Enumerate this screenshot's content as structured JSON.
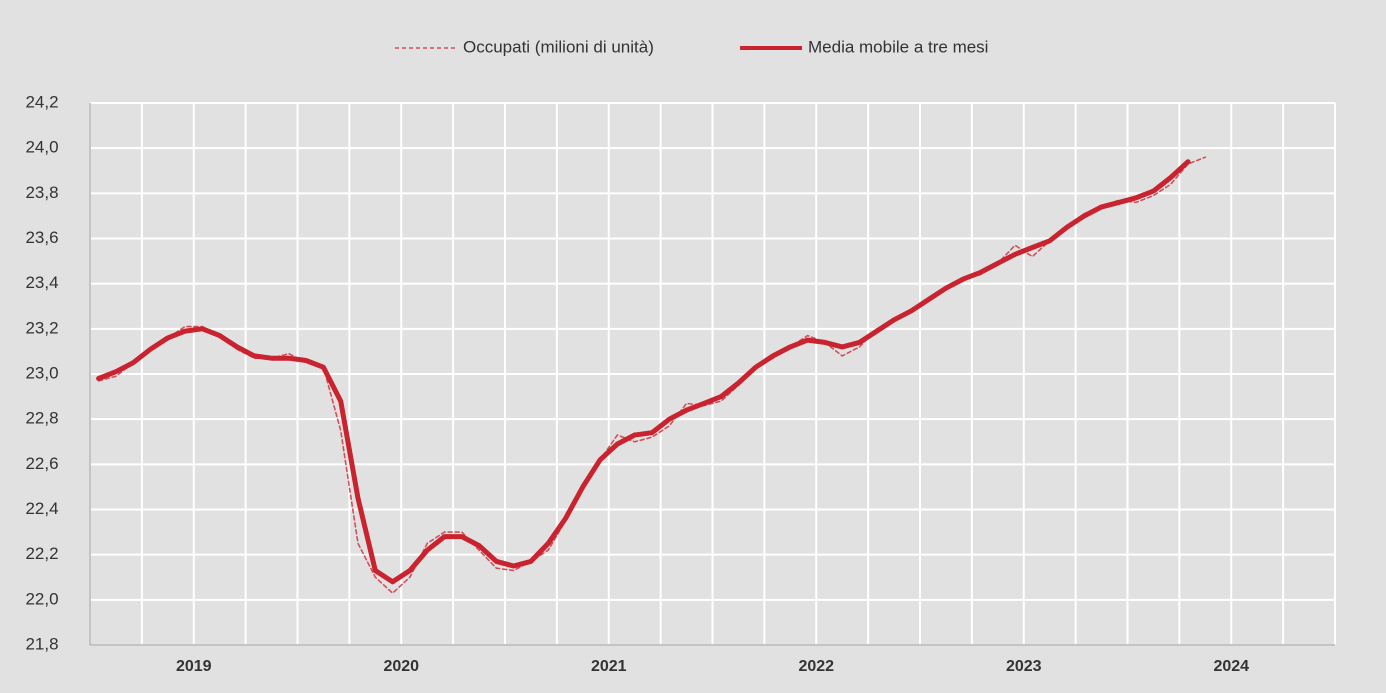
{
  "chart_data": {
    "type": "line",
    "categories": [
      null,
      null,
      null,
      null,
      null,
      null,
      "2019",
      null,
      null,
      null,
      null,
      null,
      null,
      null,
      null,
      null,
      null,
      null,
      "2020",
      null,
      null,
      null,
      null,
      null,
      null,
      null,
      null,
      null,
      null,
      null,
      "2021",
      null,
      null,
      null,
      null,
      null,
      null,
      null,
      null,
      null,
      null,
      null,
      "2022",
      null,
      null,
      null,
      null,
      null,
      null,
      null,
      null,
      null,
      null,
      null,
      "2023",
      null,
      null,
      null,
      null,
      null,
      null,
      null,
      null,
      null,
      null,
      null,
      "2024",
      null,
      null,
      null,
      null,
      null
    ],
    "series": [
      {
        "name": "Occupati (milioni di unità)",
        "color": "#d0505a",
        "line_style": "dashed",
        "values": [
          22.97,
          22.99,
          23.05,
          23.11,
          23.16,
          23.21,
          23.21,
          23.17,
          23.11,
          23.07,
          23.07,
          23.09,
          23.05,
          23.03,
          22.75,
          22.25,
          22.1,
          22.03,
          22.1,
          22.25,
          22.3,
          22.3,
          22.22,
          22.14,
          22.13,
          22.17,
          22.22,
          22.35,
          22.5,
          22.62,
          22.73,
          22.7,
          22.72,
          22.77,
          22.87,
          22.86,
          22.88,
          22.95,
          23.03,
          23.07,
          23.12,
          23.17,
          23.14,
          23.08,
          23.12,
          23.2,
          23.24,
          23.28,
          23.33,
          23.38,
          23.42,
          23.44,
          23.49,
          23.57,
          23.52,
          23.59,
          23.65,
          23.71,
          23.74,
          23.77,
          23.76,
          23.79,
          23.84,
          23.93,
          23.96,
          null,
          null,
          null,
          null,
          null,
          null,
          null
        ]
      },
      {
        "name": "Media mobile a tre mesi",
        "color": "#c8232f",
        "line_style": "solid",
        "values": [
          22.98,
          23.01,
          23.05,
          23.11,
          23.16,
          23.19,
          23.2,
          23.17,
          23.12,
          23.08,
          23.07,
          23.07,
          23.06,
          23.03,
          22.88,
          22.45,
          22.13,
          22.08,
          22.13,
          22.22,
          22.28,
          22.28,
          22.24,
          22.17,
          22.15,
          22.17,
          22.25,
          22.36,
          22.5,
          22.62,
          22.69,
          22.73,
          22.74,
          22.8,
          22.84,
          22.87,
          22.9,
          22.96,
          23.03,
          23.08,
          23.12,
          23.15,
          23.14,
          23.12,
          23.14,
          23.19,
          23.24,
          23.28,
          23.33,
          23.38,
          23.42,
          23.45,
          23.49,
          23.53,
          23.56,
          23.59,
          23.65,
          23.7,
          23.74,
          23.76,
          23.78,
          23.81,
          23.87,
          23.94,
          null,
          null,
          null,
          null,
          null,
          null,
          null,
          null
        ]
      }
    ],
    "ylim": [
      21.8,
      24.2
    ],
    "yticks": [
      {
        "value": 21.8,
        "label": "21,8"
      },
      {
        "value": 22.0,
        "label": "22,0"
      },
      {
        "value": 22.2,
        "label": "22,2"
      },
      {
        "value": 22.4,
        "label": "22,4"
      },
      {
        "value": 22.6,
        "label": "22,6"
      },
      {
        "value": 22.8,
        "label": "22,8"
      },
      {
        "value": 23.0,
        "label": "23,0"
      },
      {
        "value": 23.2,
        "label": "23,2"
      },
      {
        "value": 23.4,
        "label": "23,4"
      },
      {
        "value": 23.6,
        "label": "23,6"
      },
      {
        "value": 23.8,
        "label": "23,8"
      },
      {
        "value": 24.0,
        "label": "24,0"
      },
      {
        "value": 24.2,
        "label": "24,2"
      }
    ],
    "grid": true,
    "legend": "top"
  }
}
